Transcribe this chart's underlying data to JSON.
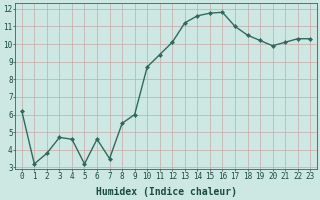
{
  "x": [
    0,
    1,
    2,
    3,
    4,
    5,
    6,
    7,
    8,
    9,
    10,
    11,
    12,
    13,
    14,
    15,
    16,
    17,
    18,
    19,
    20,
    21,
    22,
    23
  ],
  "y": [
    6.2,
    3.2,
    3.8,
    4.7,
    4.6,
    3.2,
    4.6,
    3.5,
    5.5,
    6.0,
    8.7,
    9.4,
    10.1,
    11.2,
    11.6,
    11.75,
    11.8,
    11.0,
    10.5,
    10.2,
    9.9,
    10.1,
    10.3,
    10.3
  ],
  "line_color": "#2e6b5e",
  "marker": "D",
  "marker_size": 2.0,
  "bg_color": "#cde8e2",
  "grid_color": "#b8d8d2",
  "xlabel": "Humidex (Indice chaleur)",
  "ylim": [
    3,
    12
  ],
  "xlim": [
    -0.5,
    23.5
  ],
  "yticks": [
    3,
    4,
    5,
    6,
    7,
    8,
    9,
    10,
    11,
    12
  ],
  "xticks": [
    0,
    1,
    2,
    3,
    4,
    5,
    6,
    7,
    8,
    9,
    10,
    11,
    12,
    13,
    14,
    15,
    16,
    17,
    18,
    19,
    20,
    21,
    22,
    23
  ],
  "xlabel_fontsize": 7,
  "tick_fontsize": 5.5,
  "linewidth": 1.0
}
